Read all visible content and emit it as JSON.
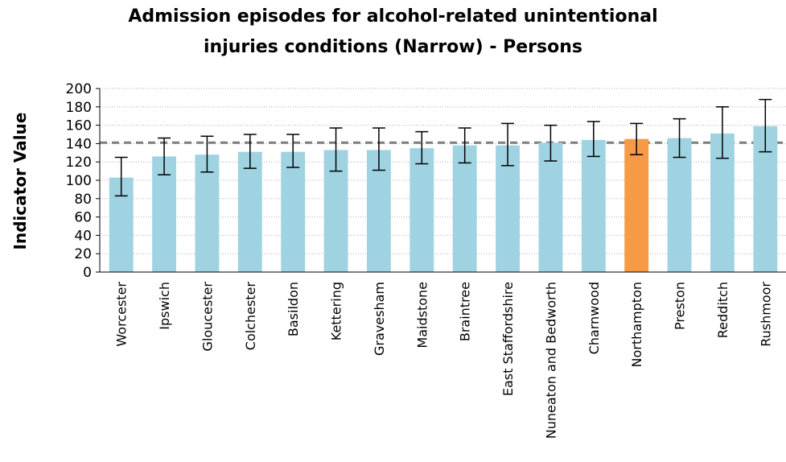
{
  "chart_data": {
    "type": "bar",
    "title_lines": [
      "Admission episodes for alcohol-related unintentional",
      "injuries conditions (Narrow) - Persons"
    ],
    "ylabel": "Indicator Value",
    "xlabel": "",
    "ylim": [
      0,
      200
    ],
    "yticks": [
      0,
      20,
      40,
      60,
      80,
      100,
      120,
      140,
      160,
      180,
      200
    ],
    "grid": true,
    "legend": "none",
    "categories": [
      "Worcester",
      "Ipswich",
      "Gloucester",
      "Colchester",
      "Basildon",
      "Kettering",
      "Gravesham",
      "Maidstone",
      "Braintree",
      "East Staffordshire",
      "Nuneaton and Bedworth",
      "Charnwood",
      "Northampton",
      "Preston",
      "Redditch",
      "Rushmoor"
    ],
    "values": [
      103,
      126,
      128,
      131,
      131,
      133,
      133,
      135,
      138,
      138,
      141,
      144,
      145,
      146,
      151,
      159
    ],
    "ci_lower": [
      83,
      106,
      109,
      113,
      114,
      110,
      111,
      118,
      119,
      116,
      121,
      126,
      128,
      125,
      124,
      131
    ],
    "ci_upper": [
      125,
      146,
      148,
      150,
      150,
      157,
      157,
      153,
      157,
      162,
      160,
      164,
      162,
      167,
      180,
      188
    ],
    "reference_line": 141,
    "highlight_index": 12,
    "colors": {
      "bar": "#9fd3e1",
      "highlight": "#f79a46",
      "reference": "#7f7f7f",
      "error": "#000000",
      "grid": "#b0b0b0"
    }
  }
}
